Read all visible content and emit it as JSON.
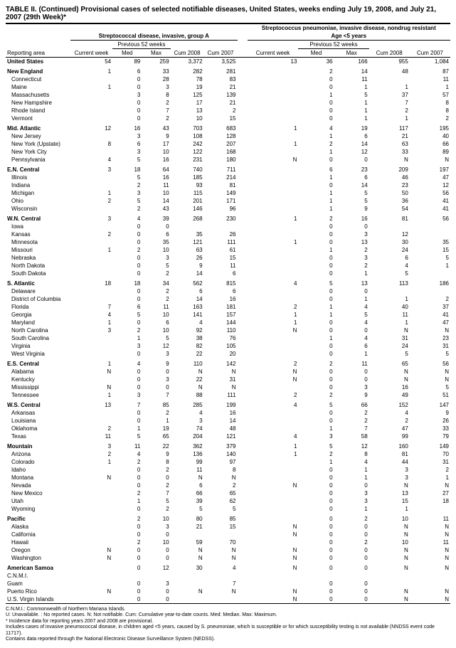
{
  "title": "TABLE II. (Continued) Provisional cases of selected notifiable diseases, United States, weeks ending July 19, 2008, and July 21, 2007 (29th Week)*",
  "disease_groups": {
    "left": "Streptococcal disease, invasive, group A",
    "right": "Streptococcus pneumoniae, invasive disease, nondrug resistant",
    "right_sub": "Age <5 years"
  },
  "col_headers": {
    "reporting_area": "Reporting area",
    "current_week": "Current week",
    "previous_52": "Previous 52 weeks",
    "med": "Med",
    "max": "Max",
    "cum_2008": "Cum 2008",
    "cum_2007": "Cum 2007"
  },
  "rows": [
    {
      "l": "United States",
      "b": true,
      "i": 0,
      "v": [
        "54",
        "89",
        "259",
        "3,372",
        "3,525",
        "13",
        "36",
        "166",
        "955",
        "1,084"
      ]
    },
    {
      "l": "New England",
      "b": true,
      "i": 0,
      "s": true,
      "v": [
        "1",
        "6",
        "33",
        "282",
        "281",
        "",
        "2",
        "14",
        "48",
        "87"
      ]
    },
    {
      "l": "Connecticut",
      "i": 1,
      "v": [
        "",
        "0",
        "28",
        "78",
        "83",
        "",
        "0",
        "11",
        "",
        "11"
      ]
    },
    {
      "l": "Maine",
      "i": 1,
      "v": [
        "1",
        "0",
        "3",
        "19",
        "21",
        "",
        "0",
        "1",
        "1",
        "1"
      ]
    },
    {
      "l": "Massachusetts",
      "i": 1,
      "v": [
        "",
        "3",
        "8",
        "125",
        "139",
        "",
        "1",
        "5",
        "37",
        "57"
      ]
    },
    {
      "l": "New Hampshire",
      "i": 1,
      "v": [
        "",
        "0",
        "2",
        "17",
        "21",
        "",
        "0",
        "1",
        "7",
        "8"
      ]
    },
    {
      "l": "Rhode Island",
      "i": 1,
      "v": [
        "",
        "0",
        "7",
        "13",
        "2",
        "",
        "0",
        "1",
        "2",
        "8"
      ]
    },
    {
      "l": "Vermont",
      "i": 1,
      "v": [
        "",
        "0",
        "2",
        "10",
        "15",
        "",
        "0",
        "1",
        "1",
        "2"
      ]
    },
    {
      "l": "Mid. Atlantic",
      "b": true,
      "i": 0,
      "s": true,
      "v": [
        "12",
        "16",
        "43",
        "703",
        "683",
        "1",
        "4",
        "19",
        "117",
        "195"
      ]
    },
    {
      "l": "New Jersey",
      "i": 1,
      "v": [
        "",
        "3",
        "9",
        "108",
        "128",
        "",
        "1",
        "6",
        "21",
        "40"
      ]
    },
    {
      "l": "New York (Upstate)",
      "i": 1,
      "v": [
        "8",
        "6",
        "17",
        "242",
        "207",
        "1",
        "2",
        "14",
        "63",
        "66"
      ]
    },
    {
      "l": "New York City",
      "i": 1,
      "v": [
        "",
        "3",
        "10",
        "122",
        "168",
        "",
        "1",
        "12",
        "33",
        "89"
      ]
    },
    {
      "l": "Pennsylvania",
      "i": 1,
      "v": [
        "4",
        "5",
        "16",
        "231",
        "180",
        "N",
        "0",
        "0",
        "N",
        "N"
      ]
    },
    {
      "l": "E.N. Central",
      "b": true,
      "i": 0,
      "s": true,
      "v": [
        "3",
        "18",
        "64",
        "740",
        "711",
        "",
        "6",
        "23",
        "209",
        "197"
      ]
    },
    {
      "l": "Illinois",
      "i": 1,
      "v": [
        "",
        "5",
        "16",
        "185",
        "214",
        "",
        "1",
        "6",
        "46",
        "47"
      ]
    },
    {
      "l": "Indiana",
      "i": 1,
      "v": [
        "",
        "2",
        "11",
        "93",
        "81",
        "",
        "0",
        "14",
        "23",
        "12"
      ]
    },
    {
      "l": "Michigan",
      "i": 1,
      "v": [
        "1",
        "3",
        "10",
        "115",
        "149",
        "",
        "1",
        "5",
        "50",
        "56"
      ]
    },
    {
      "l": "Ohio",
      "i": 1,
      "v": [
        "2",
        "5",
        "14",
        "201",
        "171",
        "",
        "1",
        "5",
        "36",
        "41"
      ]
    },
    {
      "l": "Wisconsin",
      "i": 1,
      "v": [
        "",
        "2",
        "43",
        "146",
        "96",
        "",
        "1",
        "9",
        "54",
        "41"
      ]
    },
    {
      "l": "W.N. Central",
      "b": true,
      "i": 0,
      "s": true,
      "v": [
        "3",
        "4",
        "39",
        "268",
        "230",
        "1",
        "2",
        "16",
        "81",
        "56"
      ]
    },
    {
      "l": "Iowa",
      "i": 1,
      "v": [
        "",
        "0",
        "0",
        "",
        "",
        "",
        "0",
        "0",
        "",
        ""
      ]
    },
    {
      "l": "Kansas",
      "i": 1,
      "v": [
        "2",
        "0",
        "6",
        "35",
        "26",
        "",
        "0",
        "3",
        "12",
        ""
      ]
    },
    {
      "l": "Minnesota",
      "i": 1,
      "v": [
        "",
        "0",
        "35",
        "121",
        "111",
        "1",
        "0",
        "13",
        "30",
        "35"
      ]
    },
    {
      "l": "Missouri",
      "i": 1,
      "v": [
        "1",
        "2",
        "10",
        "63",
        "61",
        "",
        "1",
        "2",
        "24",
        "15"
      ]
    },
    {
      "l": "Nebraska",
      "i": 1,
      "v": [
        "",
        "0",
        "3",
        "26",
        "15",
        "",
        "0",
        "3",
        "6",
        "5"
      ]
    },
    {
      "l": "North Dakota",
      "i": 1,
      "v": [
        "",
        "0",
        "5",
        "9",
        "11",
        "",
        "0",
        "2",
        "4",
        "1"
      ]
    },
    {
      "l": "South Dakota",
      "i": 1,
      "v": [
        "",
        "0",
        "2",
        "14",
        "6",
        "",
        "0",
        "1",
        "5",
        ""
      ]
    },
    {
      "l": "S. Atlantic",
      "b": true,
      "i": 0,
      "s": true,
      "v": [
        "18",
        "18",
        "34",
        "562",
        "815",
        "4",
        "5",
        "13",
        "113",
        "186"
      ]
    },
    {
      "l": "Delaware",
      "i": 1,
      "v": [
        "",
        "0",
        "2",
        "6",
        "6",
        "",
        "0",
        "0",
        "",
        ""
      ]
    },
    {
      "l": "District of Columbia",
      "i": 1,
      "v": [
        "",
        "0",
        "2",
        "14",
        "16",
        "",
        "0",
        "1",
        "1",
        "2"
      ]
    },
    {
      "l": "Florida",
      "i": 1,
      "v": [
        "7",
        "6",
        "11",
        "163",
        "181",
        "2",
        "1",
        "4",
        "40",
        "37"
      ]
    },
    {
      "l": "Georgia",
      "i": 1,
      "v": [
        "4",
        "5",
        "10",
        "141",
        "157",
        "1",
        "1",
        "5",
        "11",
        "41"
      ]
    },
    {
      "l": "Maryland",
      "i": 1,
      "v": [
        "1",
        "0",
        "6",
        "4",
        "144",
        "1",
        "0",
        "4",
        "1",
        "47"
      ]
    },
    {
      "l": "North Carolina",
      "i": 1,
      "v": [
        "3",
        "2",
        "10",
        "92",
        "110",
        "N",
        "0",
        "0",
        "N",
        "N"
      ]
    },
    {
      "l": "South Carolina",
      "i": 1,
      "v": [
        "",
        "1",
        "5",
        "38",
        "76",
        "",
        "1",
        "4",
        "31",
        "23"
      ]
    },
    {
      "l": "Virginia",
      "i": 1,
      "v": [
        "",
        "3",
        "12",
        "82",
        "105",
        "",
        "0",
        "6",
        "24",
        "31"
      ]
    },
    {
      "l": "West Virginia",
      "i": 1,
      "v": [
        "",
        "0",
        "3",
        "22",
        "20",
        "",
        "0",
        "1",
        "5",
        "5"
      ]
    },
    {
      "l": "E.S. Central",
      "b": true,
      "i": 0,
      "s": true,
      "v": [
        "1",
        "4",
        "9",
        "110",
        "142",
        "2",
        "2",
        "11",
        "65",
        "56"
      ]
    },
    {
      "l": "Alabama",
      "i": 1,
      "v": [
        "N",
        "0",
        "0",
        "N",
        "N",
        "N",
        "0",
        "0",
        "N",
        "N"
      ]
    },
    {
      "l": "Kentucky",
      "i": 1,
      "v": [
        "",
        "0",
        "3",
        "22",
        "31",
        "N",
        "0",
        "0",
        "N",
        "N"
      ]
    },
    {
      "l": "Mississippi",
      "i": 1,
      "v": [
        "N",
        "0",
        "0",
        "N",
        "N",
        "",
        "0",
        "3",
        "16",
        "5"
      ]
    },
    {
      "l": "Tennessee",
      "i": 1,
      "v": [
        "1",
        "3",
        "7",
        "88",
        "111",
        "2",
        "2",
        "9",
        "49",
        "51"
      ]
    },
    {
      "l": "W.S. Central",
      "b": true,
      "i": 0,
      "s": true,
      "v": [
        "13",
        "7",
        "85",
        "285",
        "199",
        "4",
        "5",
        "66",
        "152",
        "147"
      ]
    },
    {
      "l": "Arkansas",
      "i": 1,
      "v": [
        "",
        "0",
        "2",
        "4",
        "16",
        "",
        "0",
        "2",
        "4",
        "9"
      ]
    },
    {
      "l": "Louisiana",
      "i": 1,
      "v": [
        "",
        "0",
        "1",
        "3",
        "14",
        "",
        "0",
        "2",
        "2",
        "26"
      ]
    },
    {
      "l": "Oklahoma",
      "i": 1,
      "v": [
        "2",
        "1",
        "19",
        "74",
        "48",
        "",
        "1",
        "7",
        "47",
        "33"
      ]
    },
    {
      "l": "Texas",
      "i": 1,
      "v": [
        "11",
        "5",
        "65",
        "204",
        "121",
        "4",
        "3",
        "58",
        "99",
        "79"
      ]
    },
    {
      "l": "Mountain",
      "b": true,
      "i": 0,
      "s": true,
      "v": [
        "3",
        "11",
        "22",
        "362",
        "379",
        "1",
        "5",
        "12",
        "160",
        "149"
      ]
    },
    {
      "l": "Arizona",
      "i": 1,
      "v": [
        "2",
        "4",
        "9",
        "136",
        "140",
        "1",
        "2",
        "8",
        "81",
        "70"
      ]
    },
    {
      "l": "Colorado",
      "i": 1,
      "v": [
        "1",
        "2",
        "8",
        "99",
        "97",
        "",
        "1",
        "4",
        "44",
        "31"
      ]
    },
    {
      "l": "Idaho",
      "i": 1,
      "v": [
        "",
        "0",
        "2",
        "11",
        "8",
        "",
        "0",
        "1",
        "3",
        "2"
      ]
    },
    {
      "l": "Montana",
      "i": 1,
      "v": [
        "N",
        "0",
        "0",
        "N",
        "N",
        "",
        "0",
        "1",
        "3",
        "1"
      ]
    },
    {
      "l": "Nevada",
      "i": 1,
      "v": [
        "",
        "0",
        "2",
        "6",
        "2",
        "N",
        "0",
        "0",
        "N",
        "N"
      ]
    },
    {
      "l": "New Mexico",
      "i": 1,
      "v": [
        "",
        "2",
        "7",
        "66",
        "65",
        "",
        "0",
        "3",
        "13",
        "27"
      ]
    },
    {
      "l": "Utah",
      "i": 1,
      "v": [
        "",
        "1",
        "5",
        "39",
        "62",
        "",
        "0",
        "3",
        "15",
        "18"
      ]
    },
    {
      "l": "Wyoming",
      "i": 1,
      "v": [
        "",
        "0",
        "2",
        "5",
        "5",
        "",
        "0",
        "1",
        "1",
        ""
      ]
    },
    {
      "l": "Pacific",
      "b": true,
      "i": 0,
      "s": true,
      "v": [
        "",
        "2",
        "10",
        "80",
        "85",
        "",
        "0",
        "2",
        "10",
        "11"
      ]
    },
    {
      "l": "Alaska",
      "i": 1,
      "v": [
        "",
        "0",
        "3",
        "21",
        "15",
        "N",
        "0",
        "0",
        "N",
        "N"
      ]
    },
    {
      "l": "California",
      "i": 1,
      "v": [
        "",
        "0",
        "0",
        "",
        "",
        "N",
        "0",
        "0",
        "N",
        "N"
      ]
    },
    {
      "l": "Hawaii",
      "i": 1,
      "v": [
        "",
        "2",
        "10",
        "59",
        "70",
        "",
        "0",
        "2",
        "10",
        "11"
      ]
    },
    {
      "l": "Oregon",
      "i": 1,
      "v": [
        "N",
        "0",
        "0",
        "N",
        "N",
        "N",
        "0",
        "0",
        "N",
        "N"
      ]
    },
    {
      "l": "Washington",
      "i": 1,
      "v": [
        "N",
        "0",
        "0",
        "N",
        "N",
        "N",
        "0",
        "0",
        "N",
        "N"
      ]
    },
    {
      "l": "American Samoa",
      "b": true,
      "i": 0,
      "s": true,
      "v": [
        "",
        "0",
        "12",
        "30",
        "4",
        "N",
        "0",
        "0",
        "N",
        "N"
      ]
    },
    {
      "l": "C.N.M.I.",
      "i": 0,
      "v": [
        "",
        "",
        "",
        "",
        "",
        "",
        "",
        "",
        "",
        ""
      ]
    },
    {
      "l": "Guam",
      "i": 0,
      "v": [
        "",
        "0",
        "3",
        "",
        "7",
        "",
        "0",
        "0",
        "",
        ""
      ]
    },
    {
      "l": "Puerto Rico",
      "i": 0,
      "v": [
        "N",
        "0",
        "0",
        "N",
        "N",
        "N",
        "0",
        "0",
        "N",
        "N"
      ]
    },
    {
      "l": "U.S. Virgin Islands",
      "i": 0,
      "v": [
        "",
        "0",
        "0",
        "",
        "",
        "N",
        "0",
        "0",
        "N",
        "N"
      ]
    }
  ],
  "footnotes": [
    "C.N.M.I.: Commonwealth of Northern Mariana Islands.",
    "U: Unavailable.   : No reported cases.   N: Not notifiable.   Cum: Cumulative year-to-date counts.   Med: Median.   Max: Maximum.",
    "* Incidence data for reporting years 2007 and 2008 are provisional.",
    " Includes cases of invasive pneumococcal disease, in children aged <5 years, caused by S. pneumoniae, which is susceptible or for which susceptibility testing is not available (NNDSS event code 11717).",
    " Contains data reported through the National Electronic Disease Surveillance System (NEDSS)."
  ]
}
